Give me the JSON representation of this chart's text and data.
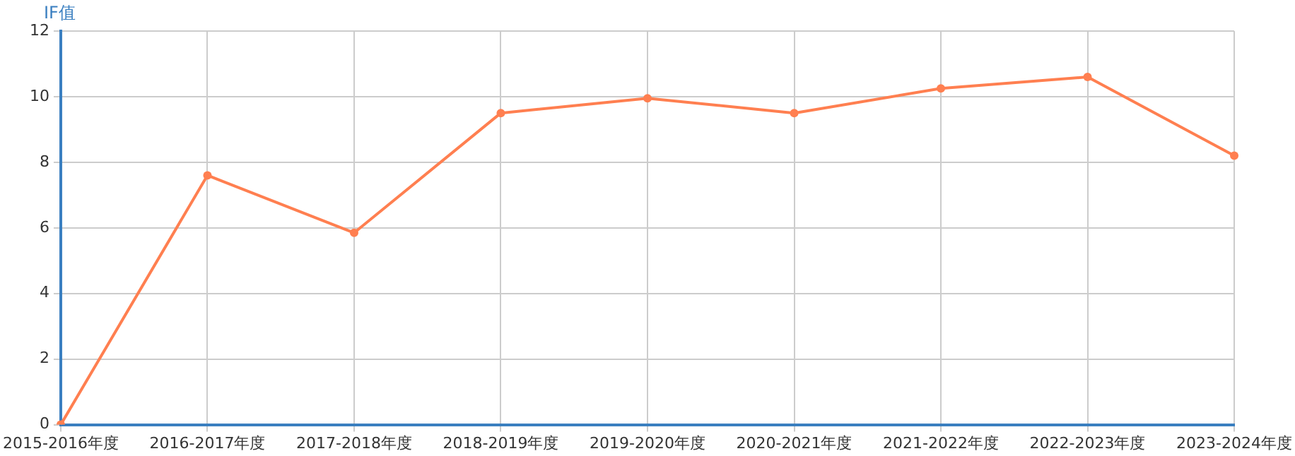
{
  "chart_data": {
    "type": "line",
    "ylabel": "IF值",
    "categories": [
      "2015-2016年度",
      "2016-2017年度",
      "2017-2018年度",
      "2018-2019年度",
      "2019-2020年度",
      "2020-2021年度",
      "2021-2022年度",
      "2022-2023年度",
      "2023-2024年度"
    ],
    "series": [
      {
        "color": "#ff7f50",
        "values": [
          0,
          7.6,
          5.85,
          9.5,
          9.95,
          9.5,
          10.25,
          10.6,
          8.2
        ]
      }
    ],
    "ylim": [
      0,
      12
    ],
    "yticks": [
      0,
      2,
      4,
      6,
      8,
      10,
      12
    ],
    "grid": true,
    "legend": false,
    "marker": "circle",
    "line_style": "solid"
  }
}
